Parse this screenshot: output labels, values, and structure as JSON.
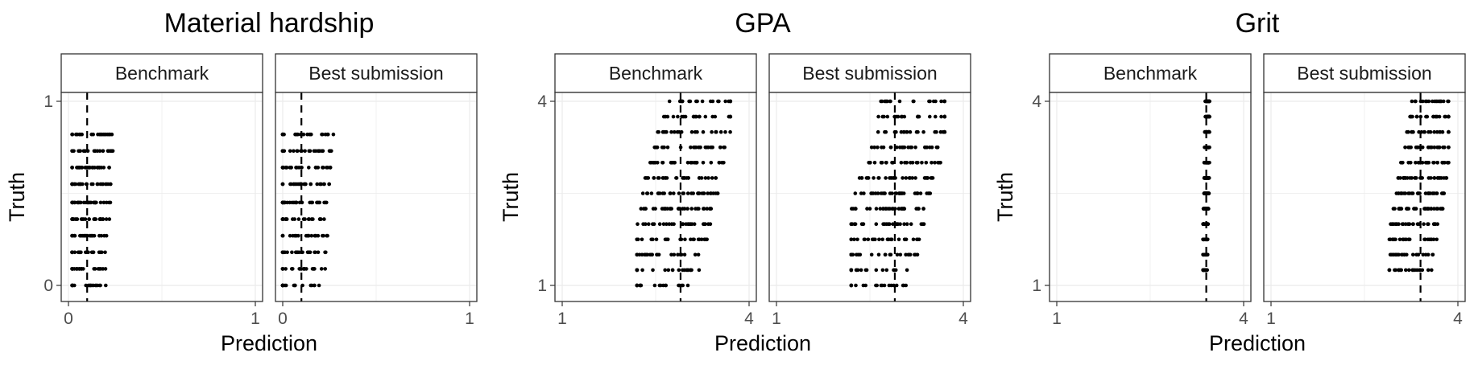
{
  "chart_data": [
    {
      "type": "scatter",
      "title": "Material hardship",
      "xlabel": "Prediction",
      "ylabel": "Truth",
      "xlim": [
        0,
        1
      ],
      "ylim": [
        0,
        1
      ],
      "x_ticks": [
        "0",
        "1"
      ],
      "y_ticks": [
        "0",
        "1"
      ],
      "facets": [
        {
          "strip": "Benchmark",
          "mean_prediction": 0.1,
          "pred_spread": [
            0.02,
            0.32
          ],
          "truth_values": [
            0,
            0.09,
            0.18,
            0.27,
            0.36,
            0.45,
            0.55,
            0.64,
            0.73,
            0.82
          ]
        },
        {
          "strip": "Best submission",
          "mean_prediction": 0.1,
          "pred_spread": [
            0.0,
            0.37
          ],
          "truth_values": [
            0,
            0.09,
            0.18,
            0.27,
            0.36,
            0.45,
            0.55,
            0.64,
            0.73,
            0.82
          ]
        }
      ]
    },
    {
      "type": "scatter",
      "title": "GPA",
      "xlabel": "Prediction",
      "ylabel": "Truth",
      "xlim": [
        1,
        4
      ],
      "ylim": [
        1,
        4
      ],
      "x_ticks": [
        "1",
        "4"
      ],
      "y_ticks": [
        "1",
        "4"
      ],
      "facets": [
        {
          "strip": "Benchmark",
          "mean_prediction": 2.9,
          "pred_spread": [
            2.2,
            3.7
          ],
          "truth_values": [
            1,
            1.25,
            1.5,
            1.75,
            2,
            2.25,
            2.5,
            2.75,
            3,
            3.25,
            3.5,
            3.75,
            4
          ]
        },
        {
          "strip": "Best submission",
          "mean_prediction": 2.9,
          "pred_spread": [
            2.2,
            3.7
          ],
          "truth_values": [
            1,
            1.25,
            1.5,
            1.75,
            2,
            2.25,
            2.5,
            2.75,
            3,
            3.25,
            3.5,
            3.75,
            4
          ]
        }
      ]
    },
    {
      "type": "scatter",
      "title": "Grit",
      "xlabel": "Prediction",
      "ylabel": "Truth",
      "xlim": [
        1,
        4
      ],
      "ylim": [
        1,
        4
      ],
      "x_ticks": [
        "1",
        "4"
      ],
      "y_ticks": [
        "1",
        "4"
      ],
      "facets": [
        {
          "strip": "Benchmark",
          "mean_prediction": 3.4,
          "pred_spread": [
            3.35,
            3.45
          ],
          "truth_values": [
            1.25,
            1.5,
            1.75,
            2,
            2.25,
            2.5,
            2.75,
            3,
            3.25,
            3.5,
            3.75,
            4
          ]
        },
        {
          "strip": "Best submission",
          "mean_prediction": 3.4,
          "pred_spread": [
            2.9,
            3.85
          ],
          "truth_values": [
            1.25,
            1.5,
            1.75,
            2,
            2.25,
            2.5,
            2.75,
            3,
            3.25,
            3.5,
            3.75,
            4
          ]
        }
      ]
    }
  ]
}
